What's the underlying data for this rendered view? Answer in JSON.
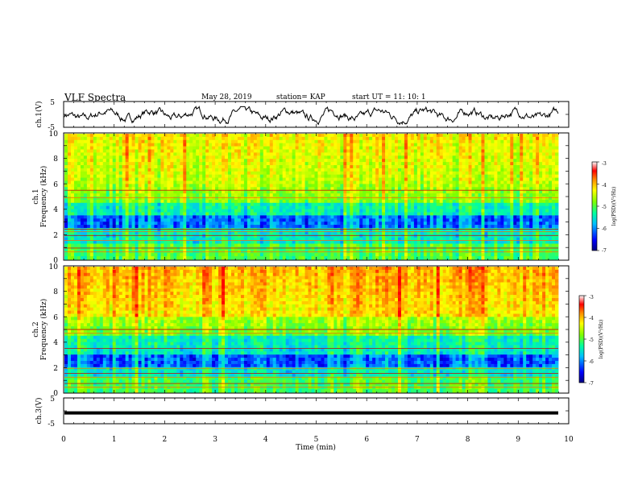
{
  "header": {
    "title": "VLF Spectra",
    "date": "May 28, 2019",
    "station": "station= KAP",
    "start": "start  UT =   11: 10: 1"
  },
  "chart_data": [
    {
      "type": "line",
      "panel": "ch1-waveform",
      "ylabel": "ch.1(V)",
      "ylim": [
        -5,
        5
      ],
      "yticks": [
        "5",
        "-5"
      ],
      "xlim": [
        0,
        10
      ],
      "series": [
        {
          "values_description_free": true,
          "amplitude_range": [
            -4,
            3
          ]
        }
      ]
    },
    {
      "type": "heatmap",
      "panel": "ch1-spectrogram",
      "ylabel_line1": "ch.1",
      "ylabel_line2": "Frequency (kHz)",
      "ylim": [
        0,
        10
      ],
      "yticks": [
        "0",
        "2",
        "4",
        "6",
        "8",
        "10"
      ],
      "xlim": [
        0,
        9.8
      ],
      "colorbar": {
        "label": "log(PSD)(V²/Hz)",
        "range": [
          -7,
          -3
        ],
        "ticks": [
          "-3",
          "-4",
          "-5",
          "-6",
          "-7"
        ]
      },
      "lines_khz": [
        5.5,
        4.9,
        2.4,
        2.2,
        1.9,
        1.5,
        0.9,
        0.6
      ],
      "dark_band_khz": [
        2.6,
        3.4
      ]
    },
    {
      "type": "heatmap",
      "panel": "ch2-spectrogram",
      "ylabel_line1": "ch.2",
      "ylabel_line2": "Frequency (kHz)",
      "ylim": [
        0,
        10
      ],
      "yticks": [
        "0",
        "2",
        "4",
        "6",
        "8",
        "10"
      ],
      "xlim": [
        0,
        9.8
      ],
      "colorbar": {
        "label": "log(PSD)(V²/Hz)",
        "range": [
          -7,
          -3
        ],
        "ticks": [
          "-3",
          "-4",
          "-5",
          "-6",
          "-7"
        ]
      },
      "lines_khz": [
        5.0,
        4.7,
        3.5,
        1.9,
        1.5,
        1.2,
        0.7,
        0.4
      ],
      "dark_band_khz": [
        2.0,
        3.1
      ]
    },
    {
      "type": "line",
      "panel": "ch3-waveform",
      "ylabel": "ch.3(V)",
      "ylim": [
        -5,
        5
      ],
      "yticks": [
        "5",
        "-5"
      ],
      "xlim": [
        0,
        10
      ],
      "series": [
        {
          "constant_value": -0.8
        }
      ]
    }
  ],
  "xaxis": {
    "label": "Time  (min)",
    "ticks": [
      "0",
      "1",
      "2",
      "3",
      "4",
      "5",
      "6",
      "7",
      "8",
      "9",
      "10"
    ]
  },
  "colors": {
    "colormap": [
      "#00007f",
      "#0000ff",
      "#00bfff",
      "#00ffa0",
      "#7fff00",
      "#ffff00",
      "#ff8c00",
      "#ff0000",
      "#ffffff"
    ]
  }
}
